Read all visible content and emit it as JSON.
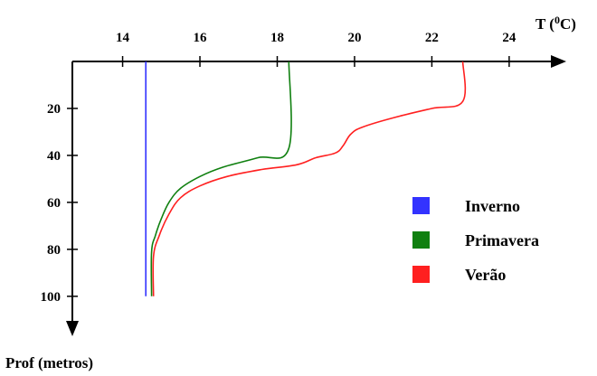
{
  "chart_data": {
    "type": "line",
    "title": "",
    "xlabel": "T (",
    "xlabel_sup": "0",
    "xlabel_end": "C)",
    "ylabel": "Prof (metros)",
    "x_axis_position": "top",
    "y_axis_inverted": true,
    "xlim": [
      12.7,
      25.5
    ],
    "ylim": [
      0,
      112
    ],
    "x_ticks": [
      14,
      16,
      18,
      20,
      22,
      24
    ],
    "y_ticks": [
      20,
      40,
      60,
      80,
      100
    ],
    "grid": false,
    "legend_position": "right",
    "series": [
      {
        "name": "Inverno",
        "color": "#3333ff",
        "points": [
          [
            14.6,
            0
          ],
          [
            14.6,
            100
          ]
        ]
      },
      {
        "name": "Primavera",
        "color": "#108010",
        "points": [
          [
            18.3,
            0
          ],
          [
            18.3,
            37
          ],
          [
            17.5,
            41
          ],
          [
            16.6,
            45
          ],
          [
            16.0,
            49
          ],
          [
            15.5,
            54
          ],
          [
            15.2,
            60
          ],
          [
            15.0,
            67
          ],
          [
            14.85,
            74
          ],
          [
            14.75,
            81
          ],
          [
            14.75,
            100
          ]
        ]
      },
      {
        "name": "Verão",
        "color": "#ff2020",
        "points": [
          [
            22.8,
            0
          ],
          [
            22.8,
            17
          ],
          [
            22.0,
            20
          ],
          [
            21.0,
            24
          ],
          [
            20.2,
            28
          ],
          [
            19.9,
            31
          ],
          [
            19.7,
            36
          ],
          [
            19.5,
            39
          ],
          [
            19.0,
            41
          ],
          [
            18.5,
            44
          ],
          [
            17.6,
            46
          ],
          [
            16.7,
            49
          ],
          [
            16.0,
            53
          ],
          [
            15.5,
            58
          ],
          [
            15.2,
            65
          ],
          [
            14.95,
            74
          ],
          [
            14.8,
            83
          ],
          [
            14.8,
            100
          ]
        ]
      }
    ]
  }
}
